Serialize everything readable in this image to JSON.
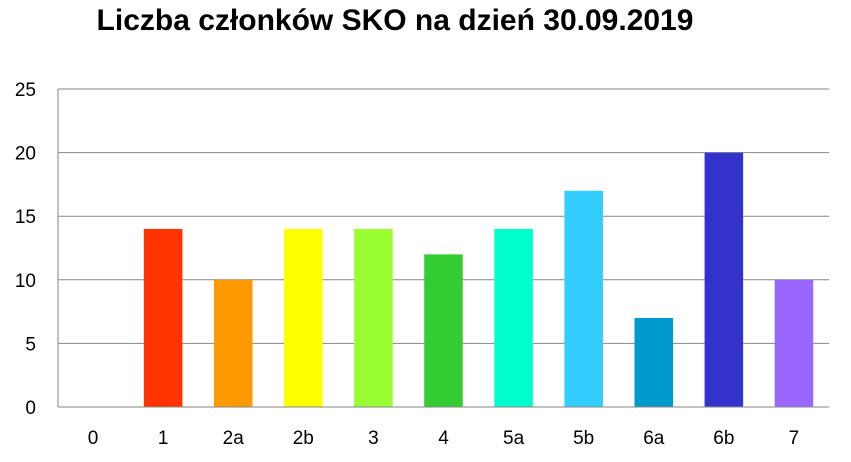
{
  "chart_data": {
    "type": "bar",
    "title": "Liczba członków SKO na dzień 30.09.2019",
    "xlabel": "",
    "ylabel": "",
    "categories": [
      "0",
      "1",
      "2a",
      "2b",
      "3",
      "4",
      "5a",
      "5b",
      "6a",
      "6b",
      "7"
    ],
    "values": [
      0,
      14,
      10,
      14,
      14,
      12,
      14,
      17,
      7,
      20,
      10
    ],
    "colors": [
      "#ffffff",
      "#ff3300",
      "#ff9900",
      "#ffff00",
      "#99ff33",
      "#33cc33",
      "#00ffcc",
      "#33ccff",
      "#0099cc",
      "#3333cc",
      "#9966ff"
    ],
    "ylim": [
      0,
      25
    ],
    "yticks": [
      0,
      5,
      10,
      15,
      20,
      25
    ],
    "grid": true,
    "legend": "none"
  }
}
